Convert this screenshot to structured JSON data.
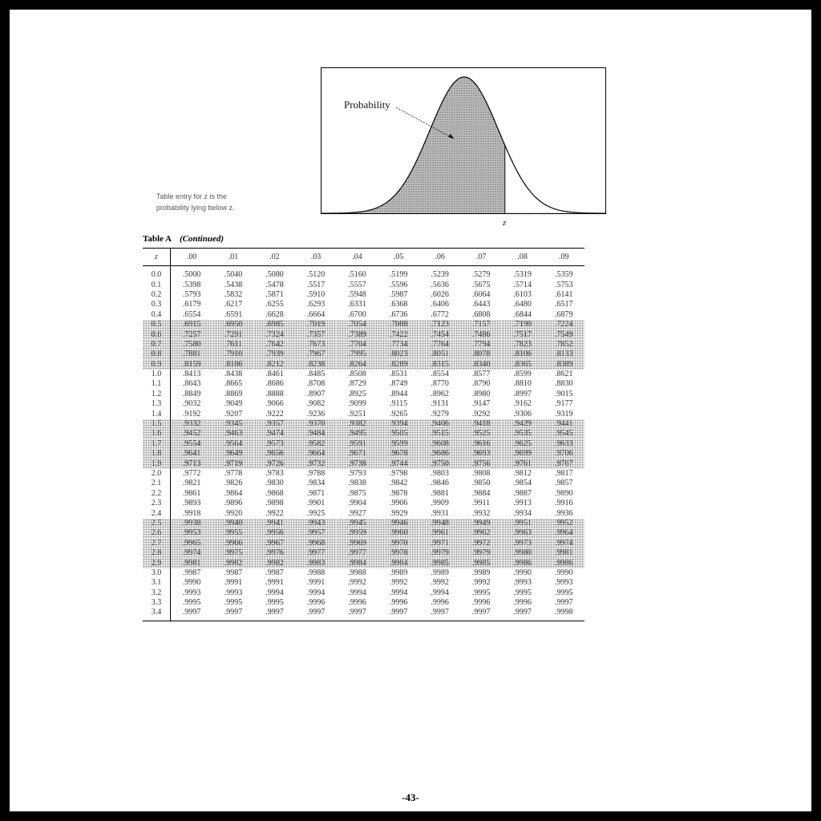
{
  "figure": {
    "probability_label": "Probability",
    "z_label": "z",
    "shaded_fraction_z": 0.25
  },
  "caption": {
    "line1": "Table entry for z is the",
    "line2": "probability lying below z."
  },
  "table": {
    "title": "Table A",
    "subtitle": "(Continued)",
    "z_header": "z",
    "columns": [
      ".00",
      ".01",
      ".02",
      ".03",
      ".04",
      ".05",
      ".06",
      ".07",
      ".08",
      ".09"
    ],
    "rows": [
      {
        "z": "0.0",
        "values": [
          ".5000",
          ".5040",
          ".5080",
          ".5120",
          ".5160",
          ".5199",
          ".5239",
          ".5279",
          ".5319",
          ".5359"
        ]
      },
      {
        "z": "0.1",
        "values": [
          ".5398",
          ".5438",
          ".5478",
          ".5517",
          ".5557",
          ".5596",
          ".5636",
          ".5675",
          ".5714",
          ".5753"
        ]
      },
      {
        "z": "0.2",
        "values": [
          ".5793",
          ".5832",
          ".5871",
          ".5910",
          ".5948",
          ".5987",
          ".6026",
          ".6064",
          ".6103",
          ".6141"
        ]
      },
      {
        "z": "0.3",
        "values": [
          ".6179",
          ".6217",
          ".6255",
          ".6293",
          ".6331",
          ".6368",
          ".6406",
          ".6443",
          ".6480",
          ".6517"
        ]
      },
      {
        "z": "0.4",
        "values": [
          ".6554",
          ".6591",
          ".6628",
          ".6664",
          ".6700",
          ".6736",
          ".6772",
          ".6808",
          ".6844",
          ".6879"
        ]
      },
      {
        "z": "0.5",
        "values": [
          ".6915",
          ".6950",
          ".6985",
          ".7019",
          ".7054",
          ".7088",
          ".7123",
          ".7157",
          ".7190",
          ".7224"
        ]
      },
      {
        "z": "0.6",
        "values": [
          ".7257",
          ".7291",
          ".7324",
          ".7357",
          ".7389",
          ".7422",
          ".7454",
          ".7486",
          ".7517",
          ".7549"
        ]
      },
      {
        "z": "0.7",
        "values": [
          ".7580",
          ".7611",
          ".7642",
          ".7673",
          ".7704",
          ".7734",
          ".7764",
          ".7794",
          ".7823",
          ".7852"
        ]
      },
      {
        "z": "0.8",
        "values": [
          ".7881",
          ".7910",
          ".7939",
          ".7967",
          ".7995",
          ".8023",
          ".8051",
          ".8078",
          ".8106",
          ".8133"
        ]
      },
      {
        "z": "0.9",
        "values": [
          ".8159",
          ".8186",
          ".8212",
          ".8238",
          ".8264",
          ".8289",
          ".8315",
          ".8340",
          ".8365",
          ".8389"
        ]
      },
      {
        "z": "1.0",
        "values": [
          ".8413",
          ".8438",
          ".8461",
          ".8485",
          ".8508",
          ".8531",
          ".8554",
          ".8577",
          ".8599",
          ".8621"
        ]
      },
      {
        "z": "1.1",
        "values": [
          ".8643",
          ".8665",
          ".8686",
          ".8708",
          ".8729",
          ".8749",
          ".8770",
          ".8790",
          ".8810",
          ".8830"
        ]
      },
      {
        "z": "1.2",
        "values": [
          ".8849",
          ".8869",
          ".8888",
          ".8907",
          ".8925",
          ".8944",
          ".8962",
          ".8980",
          ".8997",
          ".9015"
        ]
      },
      {
        "z": "1.3",
        "values": [
          ".9032",
          ".9049",
          ".9066",
          ".9082",
          ".9099",
          ".9115",
          ".9131",
          ".9147",
          ".9162",
          ".9177"
        ]
      },
      {
        "z": "1.4",
        "values": [
          ".9192",
          ".9207",
          ".9222",
          ".9236",
          ".9251",
          ".9265",
          ".9279",
          ".9292",
          ".9306",
          ".9319"
        ]
      },
      {
        "z": "1.5",
        "values": [
          ".9332",
          ".9345",
          ".9357",
          ".9370",
          ".9382",
          ".9394",
          ".9406",
          ".9418",
          ".9429",
          ".9441"
        ]
      },
      {
        "z": "1.6",
        "values": [
          ".9452",
          ".9463",
          ".9474",
          ".9484",
          ".9495",
          ".9505",
          ".9515",
          ".9525",
          ".9535",
          ".9545"
        ]
      },
      {
        "z": "1.7",
        "values": [
          ".9554",
          ".9564",
          ".9573",
          ".9582",
          ".9591",
          ".9599",
          ".9608",
          ".9616",
          ".9625",
          ".9633"
        ]
      },
      {
        "z": "1.8",
        "values": [
          ".9641",
          ".9649",
          ".9656",
          ".9664",
          ".9671",
          ".9678",
          ".9686",
          ".9693",
          ".9699",
          ".9706"
        ]
      },
      {
        "z": "1.9",
        "values": [
          ".9713",
          ".9719",
          ".9726",
          ".9732",
          ".9738",
          ".9744",
          ".9750",
          ".9756",
          ".9761",
          ".9767"
        ]
      },
      {
        "z": "2.0",
        "values": [
          ".9772",
          ".9778",
          ".9783",
          ".9788",
          ".9793",
          ".9798",
          ".9803",
          ".9808",
          ".9812",
          ".9817"
        ]
      },
      {
        "z": "2.1",
        "values": [
          ".9821",
          ".9826",
          ".9830",
          ".9834",
          ".9838",
          ".9842",
          ".9846",
          ".9850",
          ".9854",
          ".9857"
        ]
      },
      {
        "z": "2.2",
        "values": [
          ".9861",
          ".9864",
          ".9868",
          ".9871",
          ".9875",
          ".9878",
          ".9881",
          ".9884",
          ".9887",
          ".9890"
        ]
      },
      {
        "z": "2.3",
        "values": [
          ".9893",
          ".9896",
          ".9898",
          ".9901",
          ".9904",
          ".9906",
          ".9909",
          ".9911",
          ".9913",
          ".9916"
        ]
      },
      {
        "z": "2.4",
        "values": [
          ".9918",
          ".9920",
          ".9922",
          ".9925",
          ".9927",
          ".9929",
          ".9931",
          ".9932",
          ".9934",
          ".9936"
        ]
      },
      {
        "z": "2.5",
        "values": [
          ".9938",
          ".9940",
          ".9941",
          ".9943",
          ".9945",
          ".9946",
          ".9948",
          ".9949",
          ".9951",
          ".9952"
        ]
      },
      {
        "z": "2.6",
        "values": [
          ".9953",
          ".9955",
          ".9956",
          ".9957",
          ".9959",
          ".9960",
          ".9961",
          ".9962",
          ".9963",
          ".9964"
        ]
      },
      {
        "z": "2.7",
        "values": [
          ".9965",
          ".9966",
          ".9967",
          ".9968",
          ".9969",
          ".9970",
          ".9971",
          ".9972",
          ".9973",
          ".9974"
        ]
      },
      {
        "z": "2.8",
        "values": [
          ".9974",
          ".9975",
          ".9976",
          ".9977",
          ".9977",
          ".9978",
          ".9979",
          ".9979",
          ".9980",
          ".9981"
        ]
      },
      {
        "z": "2.9",
        "values": [
          ".9981",
          ".9982",
          ".9982",
          ".9983",
          ".9984",
          ".9984",
          ".9985",
          ".9985",
          ".9986",
          ".9986"
        ]
      },
      {
        "z": "3.0",
        "values": [
          ".9987",
          ".9987",
          ".9987",
          ".9988",
          ".9988",
          ".9989",
          ".9989",
          ".9989",
          ".9990",
          ".9990"
        ]
      },
      {
        "z": "3.1",
        "values": [
          ".9990",
          ".9991",
          ".9991",
          ".9991",
          ".9992",
          ".9992",
          ".9992",
          ".9992",
          ".9993",
          ".9993"
        ]
      },
      {
        "z": "3.2",
        "values": [
          ".9993",
          ".9993",
          ".9994",
          ".9994",
          ".9994",
          ".9994",
          ".9994",
          ".9995",
          ".9995",
          ".9995"
        ]
      },
      {
        "z": "3.3",
        "values": [
          ".9995",
          ".9995",
          ".9995",
          ".9996",
          ".9996",
          ".9996",
          ".9996",
          ".9996",
          ".9996",
          ".9997"
        ]
      },
      {
        "z": "3.4",
        "values": [
          ".9997",
          ".9997",
          ".9997",
          ".9997",
          ".9997",
          ".9997",
          ".9997",
          ".9997",
          ".9997",
          ".9998"
        ]
      }
    ],
    "stippled_rows": [
      "0.5",
      "0.6",
      "0.7",
      "0.8",
      "0.9",
      "1.5",
      "1.6",
      "1.7",
      "1.8",
      "1.9",
      "2.5",
      "2.6",
      "2.7",
      "2.8",
      "2.9"
    ]
  },
  "page_number": "-43-"
}
